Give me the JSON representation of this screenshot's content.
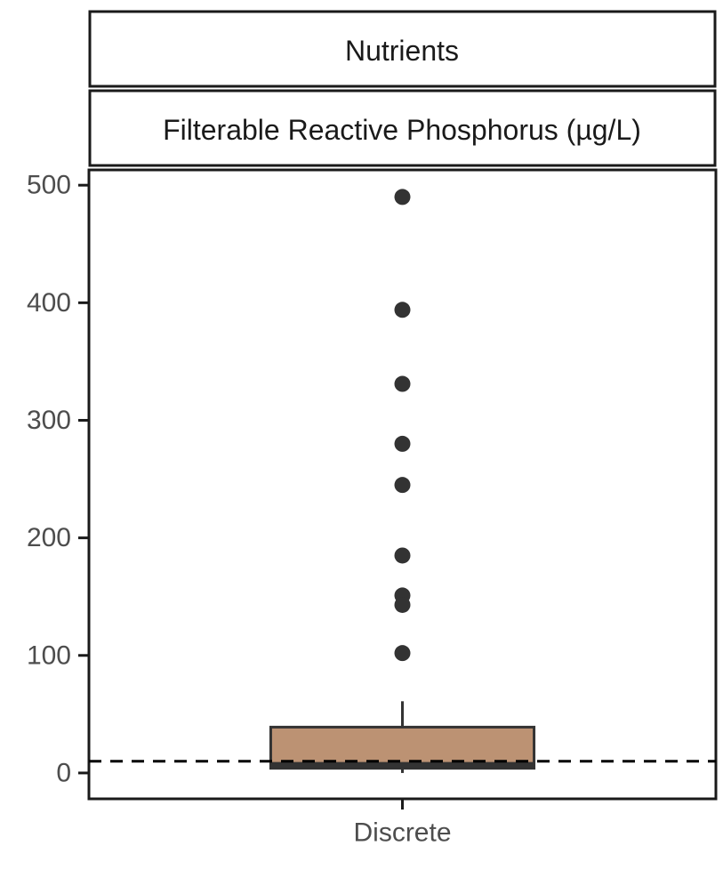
{
  "chart_data": {
    "type": "box",
    "facet_strips": [
      "Nutrients",
      "Filterable Reactive Phosphorus (µg/L)"
    ],
    "categories": [
      "Discrete"
    ],
    "ylim": [
      -22,
      513
    ],
    "yticks": [
      0,
      100,
      200,
      300,
      400,
      500
    ],
    "reference_line": {
      "y": 10,
      "style": "dashed"
    },
    "boxes": [
      {
        "category": "Discrete",
        "min": 0,
        "q1": 4,
        "median": 7,
        "q3": 39,
        "whisker_high": 61,
        "outliers": [
          490,
          394,
          331,
          280,
          245,
          185,
          151,
          143,
          102
        ]
      }
    ],
    "colors": {
      "box_fill": "#BC9273",
      "box_stroke": "#333333",
      "points": "#333333"
    },
    "grid": false,
    "legend": "none"
  }
}
